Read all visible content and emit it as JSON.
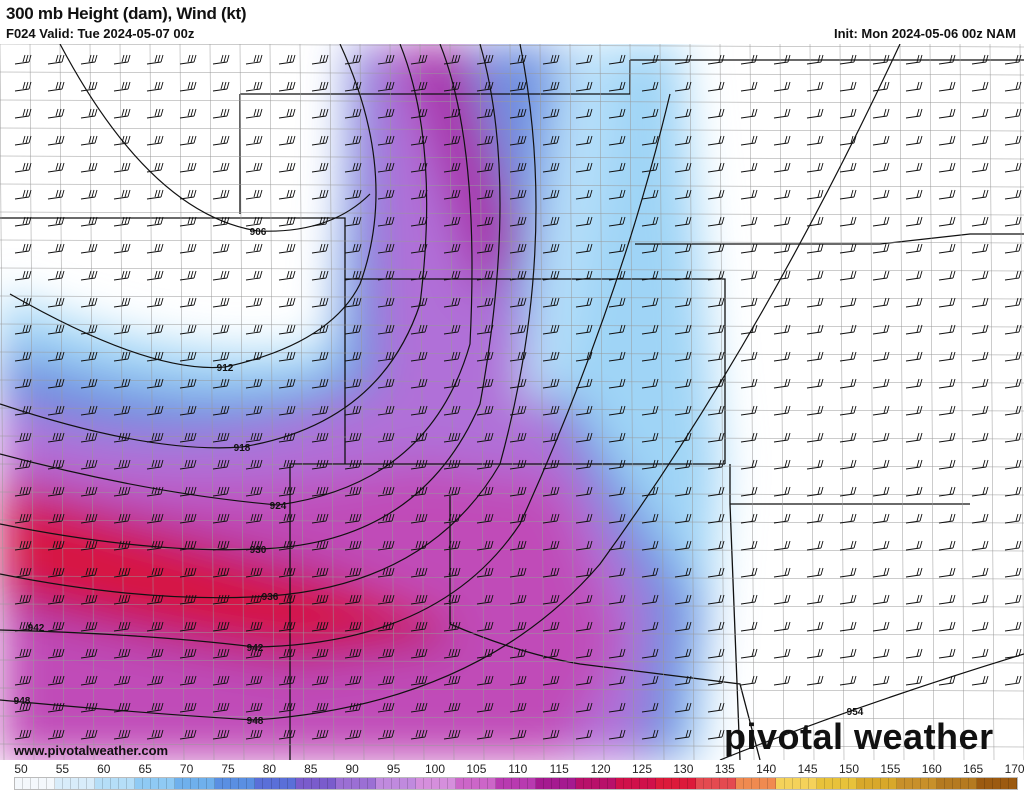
{
  "header": {
    "title": "300 mb Height (dam), Wind (kt)",
    "valid": "F024 Valid: Tue 2024-05-07 00z",
    "init": "Init: Mon 2024-05-06 00z NAM"
  },
  "footer": {
    "website": "www.pivotalweather.com",
    "logo": "pivotal weather"
  },
  "contour_labels": [
    "906",
    "912",
    "918",
    "924",
    "930",
    "936",
    "942",
    "942",
    "948",
    "948",
    "954"
  ],
  "colorbar": {
    "labels": [
      "50",
      "55",
      "60",
      "65",
      "70",
      "75",
      "80",
      "85",
      "90",
      "95",
      "100",
      "105",
      "110",
      "115",
      "120",
      "125",
      "130",
      "135",
      "140",
      "145",
      "150",
      "155",
      "160",
      "165",
      "170"
    ],
    "colors": [
      "#f4f8fc",
      "#d8ecfa",
      "#b5def8",
      "#8fcaf4",
      "#6fb0ec",
      "#5a8fe2",
      "#5a6fd8",
      "#7a5ccc",
      "#9b6fd4",
      "#c08ade",
      "#d58fdc",
      "#cc66c8",
      "#b83ab0",
      "#a51a90",
      "#b8106a",
      "#d0104a",
      "#dc1a3a",
      "#e44a50",
      "#f08a50",
      "#f5d25a",
      "#e8c23a",
      "#d8a82a",
      "#c8902a",
      "#b57a20",
      "#9c5a10"
    ]
  }
}
